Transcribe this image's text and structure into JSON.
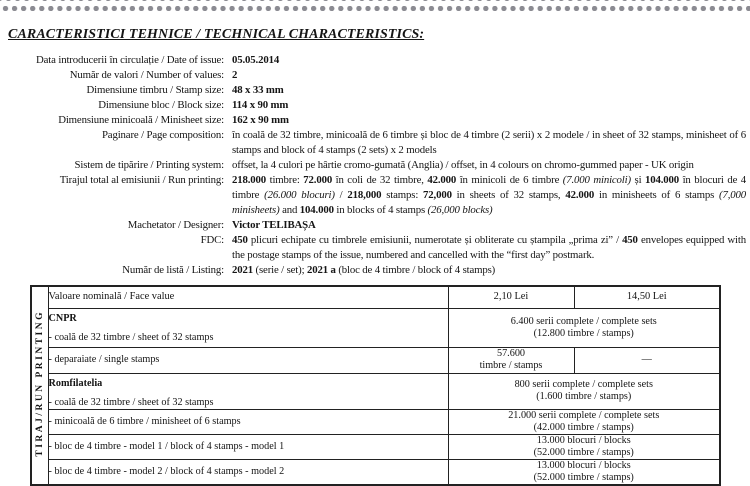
{
  "colors": {
    "dot": "#8b8b92",
    "text": "#151515",
    "border": "#222222"
  },
  "title": "CARACTERISTICI TEHNICE / TECHNICAL CHARACTERISTICS:",
  "specs": [
    {
      "label": "Data introducerii în circulație / Date of issue:",
      "value": [
        {
          "t": "05.05.2014",
          "b": true
        }
      ]
    },
    {
      "label": "Număr de valori / Number of values:",
      "value": [
        {
          "t": "2",
          "b": true
        }
      ]
    },
    {
      "label": "Dimensiune timbru / Stamp size:",
      "value": [
        {
          "t": "48 x 33 mm",
          "b": true
        }
      ]
    },
    {
      "label": "Dimensiune bloc / Block size:",
      "value": [
        {
          "t": "114 x 90 mm",
          "b": true
        }
      ]
    },
    {
      "label": "Dimensiune minicoală / Minisheet size:",
      "value": [
        {
          "t": "162 x 90 mm",
          "b": true
        }
      ]
    },
    {
      "label": "Paginare / Page composition:",
      "value": [
        {
          "t": "în coală de 32 timbre, minicoală de 6 timbre și bloc de 4 timbre (2 serii) x 2 modele / in sheet of 32 stamps, minisheet of 6 stamps and block of 4 stamps (2 sets) x 2 models"
        }
      ]
    },
    {
      "label": "Sistem de tipărire / Printing system:",
      "value": [
        {
          "t": "offset, la 4 culori pe hârtie cromo-gumată (Anglia) / offset, in 4 colours on chromo-gummed paper - UK origin"
        }
      ]
    },
    {
      "label": "Tirajul total al emisiunii / Run printing:",
      "value": [
        {
          "t": "218.000",
          "b": true
        },
        {
          "t": " timbre: "
        },
        {
          "t": "72.000",
          "b": true
        },
        {
          "t": " în coli de 32 timbre, "
        },
        {
          "t": "42.000",
          "b": true
        },
        {
          "t": " în minicoli de 6 timbre "
        },
        {
          "t": "(7.000 minicoli)",
          "i": true
        },
        {
          "t": " și "
        },
        {
          "t": "104.000",
          "b": true
        },
        {
          "t": " în blocuri de 4 timbre "
        },
        {
          "t": "(26.000 blocuri)",
          "i": true
        },
        {
          "t": " / "
        },
        {
          "t": "218,000",
          "b": true
        },
        {
          "t": " stamps: "
        },
        {
          "t": "72,000",
          "b": true
        },
        {
          "t": " in sheets of 32 stamps, "
        },
        {
          "t": "42.000",
          "b": true
        },
        {
          "t": " in minisheets of 6 stamps "
        },
        {
          "t": "(7,000 minisheets)",
          "i": true
        },
        {
          "t": " and "
        },
        {
          "t": "104.000",
          "b": true
        },
        {
          "t": " in blocks of 4 stamps "
        },
        {
          "t": "(26,000 blocks)",
          "i": true
        }
      ]
    },
    {
      "label": "Machetator / Designer:",
      "value": [
        {
          "t": "Victor TELIBAȘA",
          "b": true
        }
      ]
    },
    {
      "label": "FDC:",
      "value": [
        {
          "t": "450",
          "b": true
        },
        {
          "t": " plicuri echipate cu timbrele emisiunii, numerotate și obliterate cu ștampila „prima zi” / "
        },
        {
          "t": "450",
          "b": true
        },
        {
          "t": " envelopes equipped with the postage stamps of the issue, numbered and cancelled with the “first day” postmark."
        }
      ]
    },
    {
      "label": "Număr de listă / Listing:",
      "value": [
        {
          "t": "2021",
          "b": true
        },
        {
          "t": " (serie / set); "
        },
        {
          "t": "2021 a",
          "b": true
        },
        {
          "t": " (bloc de 4 timbre / block of 4 stamps)"
        }
      ]
    }
  ],
  "table": {
    "vertical_label": "TIRAJ/RUN PRINTING",
    "header": {
      "label": "Valoare nominală / Face value",
      "col1": "2,10 Lei",
      "col2": "14,50 Lei"
    },
    "rows": [
      {
        "group": "CNPR",
        "item": "- coală de 32 timbre / sheet of 32 stamps",
        "merged": [
          "6.400 serii complete / complete sets",
          "(12.800 timbre / stamps)"
        ]
      },
      {
        "item": "- deparaiate / single stamps",
        "col1": [
          "57.600",
          "timbre / stamps"
        ],
        "col2": "—"
      },
      {
        "group": "Romfilatelia",
        "item": "- coală de 32 timbre / sheet of 32 stamps",
        "merged": [
          "800 serii complete / complete sets",
          "(1.600 timbre / stamps)"
        ]
      },
      {
        "item": "- minicoală de 6 timbre / minisheet of 6 stamps",
        "merged": [
          "21.000 serii complete / complete sets",
          "(42.000 timbre / stamps)"
        ]
      },
      {
        "item": "- bloc de 4 timbre - model 1 / block of 4 stamps - model 1",
        "merged": [
          "13.000 blocuri / blocks",
          "(52.000 timbre / stamps)"
        ]
      },
      {
        "item": "- bloc de 4 timbre - model 2 / block of 4 stamps - model 2",
        "merged": [
          "13.000 blocuri / blocks",
          "(52.000 timbre / stamps)"
        ]
      }
    ]
  }
}
